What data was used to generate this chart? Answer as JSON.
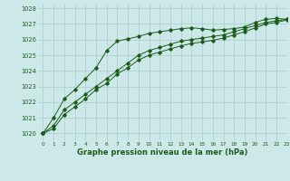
{
  "xlabel": "Graphe pression niveau de la mer (hPa)",
  "bg_color": "#cde8e8",
  "grid_color": "#aacccc",
  "line_color": "#1a5c1a",
  "ylim": [
    1019.5,
    1028.3
  ],
  "xlim": [
    -0.5,
    23
  ],
  "yticks": [
    1020,
    1021,
    1022,
    1023,
    1024,
    1025,
    1026,
    1027,
    1028
  ],
  "xticks": [
    0,
    1,
    2,
    3,
    4,
    5,
    6,
    7,
    8,
    9,
    10,
    11,
    12,
    13,
    14,
    15,
    16,
    17,
    18,
    19,
    20,
    21,
    22,
    23
  ],
  "series1": [
    1020.0,
    1021.0,
    1022.2,
    1022.8,
    1023.5,
    1024.2,
    1025.3,
    1025.9,
    1026.05,
    1026.2,
    1026.4,
    1026.5,
    1026.6,
    1026.7,
    1026.75,
    1026.7,
    1026.6,
    1026.65,
    1026.7,
    1026.8,
    1027.1,
    1027.3,
    1027.35,
    1027.3
  ],
  "series2": [
    1020.0,
    1020.5,
    1021.5,
    1022.0,
    1022.5,
    1023.0,
    1023.5,
    1024.0,
    1024.5,
    1025.0,
    1025.3,
    1025.5,
    1025.7,
    1025.9,
    1026.0,
    1026.1,
    1026.2,
    1026.3,
    1026.5,
    1026.7,
    1026.9,
    1027.1,
    1027.2,
    1027.3
  ],
  "series3": [
    1020.0,
    1020.3,
    1021.2,
    1021.7,
    1022.2,
    1022.8,
    1023.2,
    1023.8,
    1024.2,
    1024.7,
    1025.0,
    1025.2,
    1025.4,
    1025.6,
    1025.75,
    1025.85,
    1025.95,
    1026.1,
    1026.3,
    1026.5,
    1026.75,
    1027.0,
    1027.1,
    1027.25
  ],
  "ylabel_fontsize": 5.0,
  "xlabel_fontsize": 6.0,
  "xtick_fontsize": 4.2,
  "ytick_fontsize": 4.8,
  "marker_size": 1.8,
  "line_width": 0.7
}
